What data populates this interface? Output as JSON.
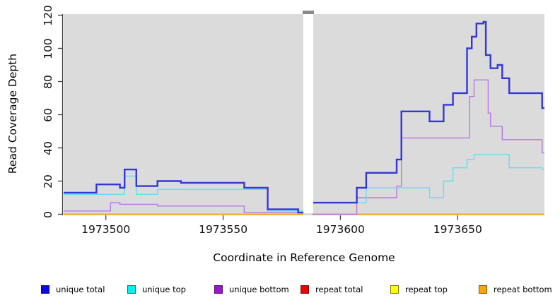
{
  "figure": {
    "background": "#ffffff",
    "plot_background": "#dbdbdb",
    "axis_color": "#404040"
  },
  "axes": {
    "x": {
      "label": "Coordinate in Reference Genome",
      "range": [
        1973482,
        1973687
      ],
      "ticks": [
        1973500,
        1973550,
        1973600,
        1973650
      ]
    },
    "y": {
      "label": "Read Coverage Depth",
      "range": [
        0,
        120
      ],
      "ticks": [
        0,
        20,
        40,
        60,
        80,
        100,
        120
      ]
    }
  },
  "axis_break": {
    "x_start": 1973584.3,
    "x_end": 1973588.3,
    "marker_color": "#8a8a8a"
  },
  "legend": {
    "items": [
      {
        "label": "unique total",
        "color": "#0808e8"
      },
      {
        "label": "unique top",
        "color": "#00f2f2"
      },
      {
        "label": "unique bottom",
        "color": "#9d13d6"
      },
      {
        "label": "repeat total",
        "color": "#f00000"
      },
      {
        "label": "repeat top",
        "color": "#ffff00"
      },
      {
        "label": "repeat bottom",
        "color": "#ffa500"
      }
    ]
  },
  "chart_data": {
    "type": "line",
    "subtype": "step-after-coverage",
    "title": "",
    "xlabel": "Coordinate in Reference Genome",
    "ylabel": "Read Coverage Depth",
    "xlim": [
      1973482,
      1973687
    ],
    "ylim": [
      0,
      120
    ],
    "grid": false,
    "legend_position": "bottom",
    "axis_break_x": [
      1973584.3,
      1973588.3
    ],
    "series": [
      {
        "name": "repeat top",
        "color": "#ffff00",
        "width": 1.2,
        "segments": [
          {
            "points": [
              [
                1973482,
                0
              ]
            ],
            "end": 1973584.3
          },
          {
            "points": [
              [
                1973588,
                0
              ]
            ],
            "end": 1973687
          }
        ]
      },
      {
        "name": "repeat total",
        "color": "#e02020",
        "width": 1.2,
        "segments": [
          {
            "points": [
              [
                1973482,
                0
              ]
            ],
            "end": 1973584.3
          },
          {
            "points": [
              [
                1973588,
                0
              ]
            ],
            "end": 1973687
          }
        ]
      },
      {
        "name": "repeat bottom",
        "color": "#ffa408",
        "width": 1.6,
        "segments": [
          {
            "points": [
              [
                1973482,
                0
              ]
            ],
            "end": 1973584.3
          },
          {
            "points": [
              [
                1973588,
                0
              ]
            ],
            "end": 1973687
          }
        ]
      },
      {
        "name": "unique bottom",
        "color": "#b879e2",
        "width": 1.4,
        "segments": [
          {
            "points": [
              [
                1973482,
                2
              ],
              [
                1973502,
                7
              ],
              [
                1973506,
                6
              ],
              [
                1973522,
                5
              ],
              [
                1973559,
                1
              ]
            ],
            "end": 1973584.3
          },
          {
            "points": [
              [
                1973588,
                0
              ],
              [
                1973607,
                10
              ],
              [
                1973624,
                17
              ],
              [
                1973626,
                46
              ],
              [
                1973655,
                71
              ],
              [
                1973657,
                81
              ],
              [
                1973663,
                61
              ],
              [
                1973664,
                53
              ],
              [
                1973669,
                45
              ],
              [
                1973686,
                37
              ]
            ],
            "end": 1973687
          }
        ]
      },
      {
        "name": "unique top",
        "color": "#5ce1ef",
        "width": 1.4,
        "segments": [
          {
            "points": [
              [
                1973482,
                12
              ],
              [
                1973508,
                23
              ],
              [
                1973513,
                12
              ],
              [
                1973522,
                15
              ],
              [
                1973569,
                2
              ]
            ],
            "end": 1973584.3
          },
          {
            "points": [
              [
                1973588,
                7
              ],
              [
                1973611,
                16
              ],
              [
                1973638,
                10
              ],
              [
                1973644,
                20
              ],
              [
                1973648,
                28
              ],
              [
                1973654,
                33
              ],
              [
                1973657,
                36
              ],
              [
                1973672,
                28
              ],
              [
                1973686,
                27
              ]
            ],
            "end": 1973687
          }
        ]
      },
      {
        "name": "unique total",
        "color": "#3336d8",
        "width": 2.4,
        "segments": [
          {
            "points": [
              [
                1973482,
                13
              ],
              [
                1973496,
                18
              ],
              [
                1973506,
                16
              ],
              [
                1973508,
                27
              ],
              [
                1973513,
                17
              ],
              [
                1973522,
                20
              ],
              [
                1973532,
                19
              ],
              [
                1973559,
                16
              ],
              [
                1973569,
                3
              ],
              [
                1973582,
                1
              ]
            ],
            "end": 1973584.3
          },
          {
            "points": [
              [
                1973588,
                7
              ],
              [
                1973607,
                16
              ],
              [
                1973611,
                25
              ],
              [
                1973624,
                33
              ],
              [
                1973626,
                62
              ],
              [
                1973638,
                56
              ],
              [
                1973644,
                66
              ],
              [
                1973648,
                73
              ],
              [
                1973654,
                100
              ],
              [
                1973656,
                107
              ],
              [
                1973658,
                115
              ],
              [
                1973661,
                116
              ],
              [
                1973662,
                96
              ],
              [
                1973664,
                88
              ],
              [
                1973667,
                90
              ],
              [
                1973669,
                82
              ],
              [
                1973672,
                73
              ],
              [
                1973686,
                64
              ]
            ],
            "end": 1973687
          }
        ]
      }
    ]
  }
}
